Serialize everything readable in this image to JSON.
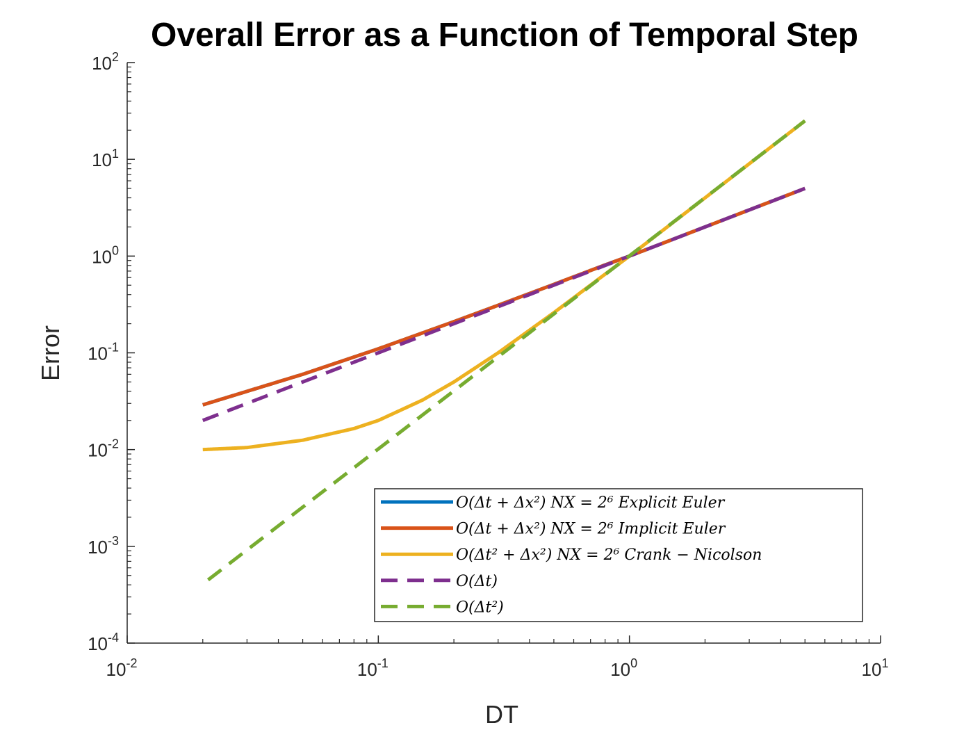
{
  "chart_data": {
    "type": "line",
    "title": "Overall Error as a Function of Temporal Step",
    "xlabel": "DT",
    "ylabel": "Error",
    "xscale": "log",
    "yscale": "log",
    "xlim": [
      0.01,
      10
    ],
    "ylim": [
      0.0001,
      100
    ],
    "x_ticks": [
      {
        "base": "10",
        "exp": "-2",
        "value": 0.01
      },
      {
        "base": "10",
        "exp": "-1",
        "value": 0.1
      },
      {
        "base": "10",
        "exp": "0",
        "value": 1
      },
      {
        "base": "10",
        "exp": "1",
        "value": 10
      }
    ],
    "y_ticks": [
      {
        "base": "10",
        "exp": "-4",
        "value": 0.0001
      },
      {
        "base": "10",
        "exp": "-3",
        "value": 0.001
      },
      {
        "base": "10",
        "exp": "-2",
        "value": 0.01
      },
      {
        "base": "10",
        "exp": "-1",
        "value": 0.1
      },
      {
        "base": "10",
        "exp": "0",
        "value": 1
      },
      {
        "base": "10",
        "exp": "1",
        "value": 10
      },
      {
        "base": "10",
        "exp": "2",
        "value": 100
      }
    ],
    "grid": false,
    "legend_position": "bottom-right",
    "series": [
      {
        "name": "O(Δt + Δx²)  NX = 2⁶  Explicit Euler",
        "color": "#0072BD",
        "style": "solid",
        "x": [
          0.02,
          0.03,
          0.05,
          0.1,
          0.2,
          0.3,
          0.5,
          0.8,
          1,
          1.5,
          2,
          3,
          5
        ],
        "y": [
          0.029,
          0.04,
          0.06,
          0.11,
          0.21,
          0.31,
          0.51,
          0.81,
          1.0,
          1.5,
          2.0,
          3.0,
          5.0
        ]
      },
      {
        "name": "O(Δt + Δx²)  NX = 2⁶  Implicit Euler",
        "color": "#D95319",
        "style": "solid",
        "x": [
          0.02,
          0.03,
          0.05,
          0.1,
          0.2,
          0.3,
          0.5,
          0.8,
          1,
          1.5,
          2,
          3,
          5
        ],
        "y": [
          0.029,
          0.04,
          0.06,
          0.11,
          0.21,
          0.31,
          0.51,
          0.81,
          1.0,
          1.5,
          2.0,
          3.0,
          5.0
        ]
      },
      {
        "name": "O(Δt² + Δx²)  NX = 2⁶  Crank − Nicolson",
        "color": "#EDB120",
        "style": "solid",
        "x": [
          0.02,
          0.03,
          0.05,
          0.08,
          0.1,
          0.15,
          0.2,
          0.3,
          0.5,
          0.8,
          1,
          1.5,
          2,
          3,
          5
        ],
        "y": [
          0.01,
          0.0105,
          0.0125,
          0.0165,
          0.02,
          0.0325,
          0.05,
          0.1,
          0.26,
          0.65,
          1.0,
          2.25,
          4.0,
          9.0,
          25.0
        ]
      },
      {
        "name": "O(Δt)",
        "color": "#7E2F8E",
        "style": "dashed",
        "x": [
          0.02,
          5
        ],
        "y": [
          0.02,
          5.0
        ]
      },
      {
        "name": "O(Δt²)",
        "color": "#77AC30",
        "style": "dashed",
        "x": [
          0.021,
          5
        ],
        "y": [
          0.00045,
          25.0
        ]
      }
    ]
  }
}
